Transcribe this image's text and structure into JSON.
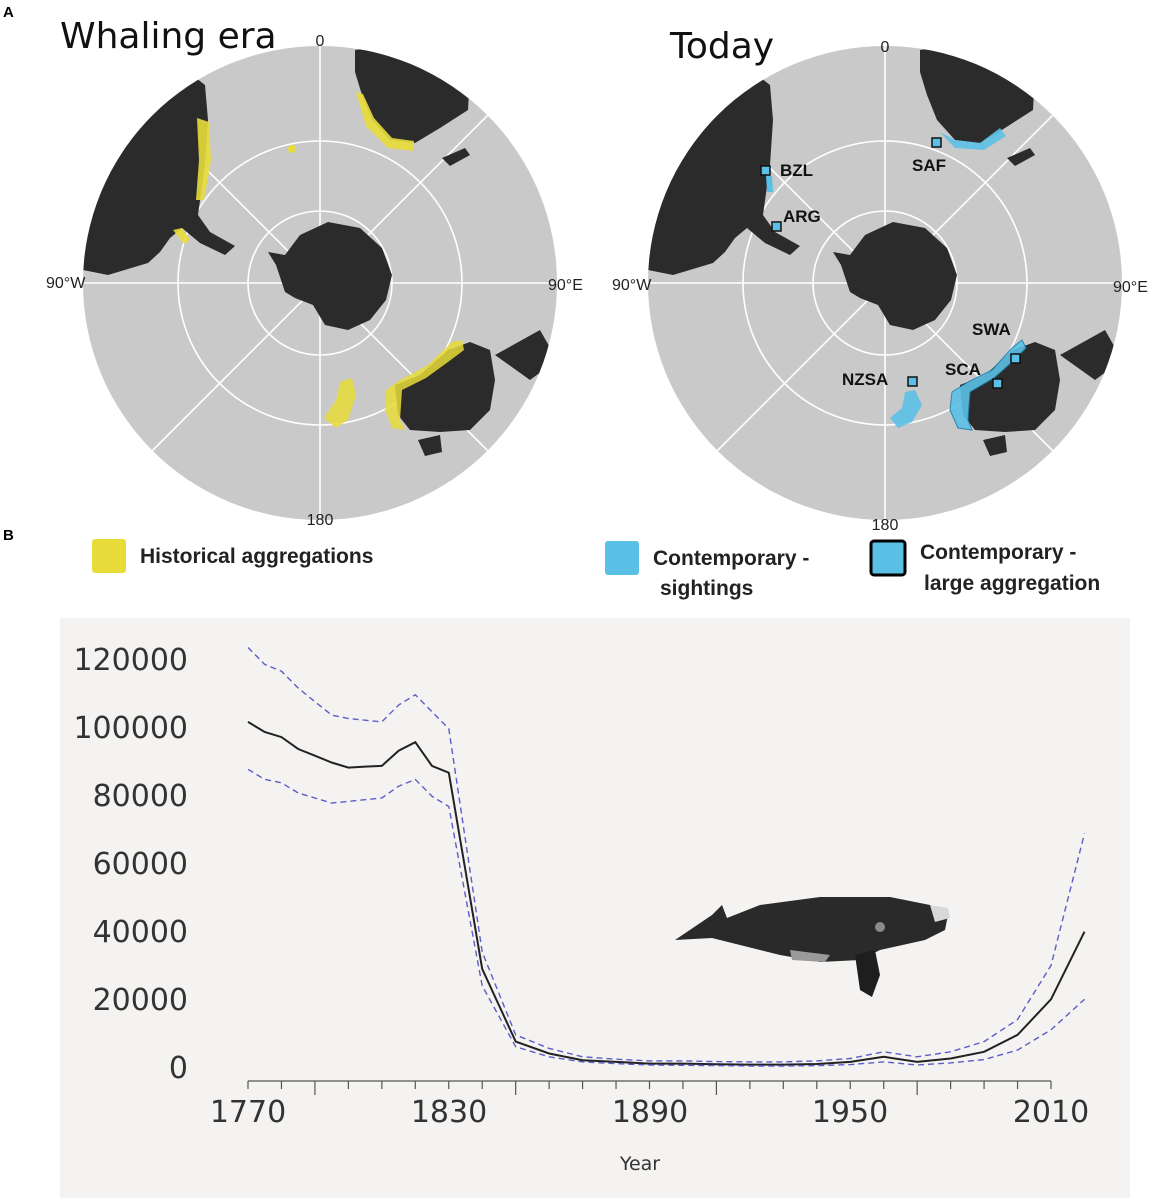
{
  "panels": {
    "a_label": "A",
    "b_label": "B"
  },
  "maps": {
    "left_title": "Whaling era",
    "right_title": "Today",
    "deg_top": "0",
    "deg_left": "90°W",
    "deg_right": "90°E",
    "deg_bottom": "180",
    "sites": [
      "BZL",
      "ARG",
      "SAF",
      "SWA",
      "SCA",
      "NZSA"
    ]
  },
  "legend": {
    "historical": "Historical aggregations",
    "sightings_line1": "Contemporary -",
    "sightings_line2": "sightings",
    "large_line1": "Contemporary -",
    "large_line2": "large aggregation"
  },
  "colors": {
    "ocean": "#c9c9c9",
    "land": "#2b2b2b",
    "historical": "#e8dc3a",
    "contemporary": "#5bc0e6",
    "median_line": "#222222",
    "ci_line": "#5a5fc7",
    "plot_bg": "#f4f3f1"
  },
  "chart_data": {
    "type": "line",
    "title": "",
    "xlabel": "Year",
    "ylabel": "",
    "xlim": [
      1770,
      2020
    ],
    "ylim": [
      0,
      120000
    ],
    "xticks": [
      1770,
      1830,
      1890,
      1950,
      2010
    ],
    "yticks": [
      0,
      20000,
      40000,
      60000,
      80000,
      100000,
      120000
    ],
    "series": [
      {
        "style": "solid",
        "x": [
          1770,
          1775,
          1780,
          1785,
          1790,
          1795,
          1800,
          1805,
          1810,
          1815,
          1820,
          1825,
          1830,
          1840,
          1850,
          1860,
          1870,
          1880,
          1890,
          1900,
          1910,
          1920,
          1930,
          1940,
          1950,
          1960,
          1970,
          1980,
          1990,
          2000,
          2010,
          2020
        ],
        "y": [
          102000,
          99000,
          97500,
          94000,
          92000,
          90000,
          88500,
          88800,
          89000,
          93500,
          96000,
          89000,
          87000,
          29000,
          7500,
          4000,
          2000,
          1500,
          1000,
          1000,
          800,
          700,
          700,
          900,
          1500,
          3000,
          1500,
          2500,
          4500,
          9500,
          20000,
          40000
        ]
      },
      {
        "style": "dashed",
        "x": [
          1770,
          1775,
          1780,
          1785,
          1790,
          1795,
          1800,
          1805,
          1810,
          1815,
          1820,
          1825,
          1830,
          1840,
          1850,
          1860,
          1870,
          1880,
          1890,
          1900,
          1910,
          1920,
          1930,
          1940,
          1950,
          1960,
          1970,
          1980,
          1990,
          2000,
          2010,
          2020
        ],
        "y": [
          124000,
          119000,
          117000,
          112000,
          108000,
          104000,
          103000,
          102500,
          102000,
          107000,
          110000,
          105000,
          100000,
          34000,
          9500,
          5500,
          3000,
          2300,
          1800,
          1800,
          1600,
          1500,
          1500,
          1800,
          2500,
          4500,
          3000,
          4500,
          7500,
          14000,
          30000,
          69000
        ]
      },
      {
        "style": "dashed",
        "x": [
          1770,
          1775,
          1780,
          1785,
          1790,
          1795,
          1800,
          1805,
          1810,
          1815,
          1820,
          1825,
          1830,
          1840,
          1850,
          1860,
          1870,
          1880,
          1890,
          1900,
          1910,
          1920,
          1930,
          1940,
          1950,
          1960,
          1970,
          1980,
          1990,
          2000,
          2010,
          2020
        ],
        "y": [
          88000,
          85000,
          84000,
          81000,
          79500,
          78000,
          78500,
          79000,
          79500,
          83000,
          85000,
          80000,
          77000,
          24000,
          6000,
          3000,
          1500,
          1000,
          600,
          500,
          400,
          300,
          300,
          400,
          700,
          1500,
          600,
          1200,
          2200,
          5000,
          11000,
          20000
        ]
      }
    ]
  }
}
